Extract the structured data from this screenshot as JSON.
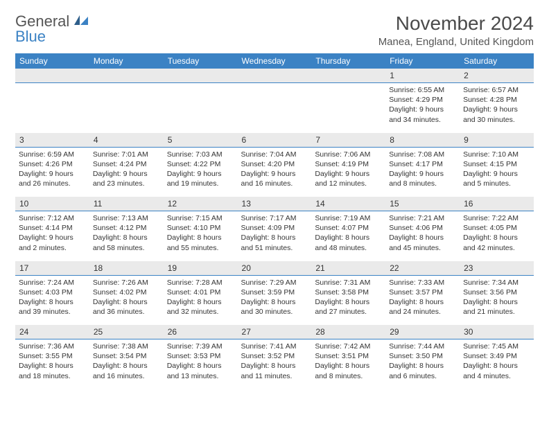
{
  "logo": {
    "text1": "General",
    "text2": "Blue"
  },
  "title": "November 2024",
  "location": "Manea, England, United Kingdom",
  "colors": {
    "header_bg": "#3b82c4",
    "header_text": "#ffffff",
    "num_row_bg": "#eaeaea",
    "divider": "#3b82c4",
    "body_bg": "#ffffff",
    "text": "#333333",
    "logo_accent": "#3b82c4"
  },
  "typography": {
    "title_fontsize": 28,
    "location_fontsize": 15,
    "dow_fontsize": 12,
    "daynum_fontsize": 12,
    "info_fontsize": 10.5
  },
  "days_of_week": [
    "Sunday",
    "Monday",
    "Tuesday",
    "Wednesday",
    "Thursday",
    "Friday",
    "Saturday"
  ],
  "weeks": [
    [
      null,
      null,
      null,
      null,
      null,
      {
        "n": "1",
        "sr": "Sunrise: 6:55 AM",
        "ss": "Sunset: 4:29 PM",
        "d1": "Daylight: 9 hours",
        "d2": "and 34 minutes."
      },
      {
        "n": "2",
        "sr": "Sunrise: 6:57 AM",
        "ss": "Sunset: 4:28 PM",
        "d1": "Daylight: 9 hours",
        "d2": "and 30 minutes."
      }
    ],
    [
      {
        "n": "3",
        "sr": "Sunrise: 6:59 AM",
        "ss": "Sunset: 4:26 PM",
        "d1": "Daylight: 9 hours",
        "d2": "and 26 minutes."
      },
      {
        "n": "4",
        "sr": "Sunrise: 7:01 AM",
        "ss": "Sunset: 4:24 PM",
        "d1": "Daylight: 9 hours",
        "d2": "and 23 minutes."
      },
      {
        "n": "5",
        "sr": "Sunrise: 7:03 AM",
        "ss": "Sunset: 4:22 PM",
        "d1": "Daylight: 9 hours",
        "d2": "and 19 minutes."
      },
      {
        "n": "6",
        "sr": "Sunrise: 7:04 AM",
        "ss": "Sunset: 4:20 PM",
        "d1": "Daylight: 9 hours",
        "d2": "and 16 minutes."
      },
      {
        "n": "7",
        "sr": "Sunrise: 7:06 AM",
        "ss": "Sunset: 4:19 PM",
        "d1": "Daylight: 9 hours",
        "d2": "and 12 minutes."
      },
      {
        "n": "8",
        "sr": "Sunrise: 7:08 AM",
        "ss": "Sunset: 4:17 PM",
        "d1": "Daylight: 9 hours",
        "d2": "and 8 minutes."
      },
      {
        "n": "9",
        "sr": "Sunrise: 7:10 AM",
        "ss": "Sunset: 4:15 PM",
        "d1": "Daylight: 9 hours",
        "d2": "and 5 minutes."
      }
    ],
    [
      {
        "n": "10",
        "sr": "Sunrise: 7:12 AM",
        "ss": "Sunset: 4:14 PM",
        "d1": "Daylight: 9 hours",
        "d2": "and 2 minutes."
      },
      {
        "n": "11",
        "sr": "Sunrise: 7:13 AM",
        "ss": "Sunset: 4:12 PM",
        "d1": "Daylight: 8 hours",
        "d2": "and 58 minutes."
      },
      {
        "n": "12",
        "sr": "Sunrise: 7:15 AM",
        "ss": "Sunset: 4:10 PM",
        "d1": "Daylight: 8 hours",
        "d2": "and 55 minutes."
      },
      {
        "n": "13",
        "sr": "Sunrise: 7:17 AM",
        "ss": "Sunset: 4:09 PM",
        "d1": "Daylight: 8 hours",
        "d2": "and 51 minutes."
      },
      {
        "n": "14",
        "sr": "Sunrise: 7:19 AM",
        "ss": "Sunset: 4:07 PM",
        "d1": "Daylight: 8 hours",
        "d2": "and 48 minutes."
      },
      {
        "n": "15",
        "sr": "Sunrise: 7:21 AM",
        "ss": "Sunset: 4:06 PM",
        "d1": "Daylight: 8 hours",
        "d2": "and 45 minutes."
      },
      {
        "n": "16",
        "sr": "Sunrise: 7:22 AM",
        "ss": "Sunset: 4:05 PM",
        "d1": "Daylight: 8 hours",
        "d2": "and 42 minutes."
      }
    ],
    [
      {
        "n": "17",
        "sr": "Sunrise: 7:24 AM",
        "ss": "Sunset: 4:03 PM",
        "d1": "Daylight: 8 hours",
        "d2": "and 39 minutes."
      },
      {
        "n": "18",
        "sr": "Sunrise: 7:26 AM",
        "ss": "Sunset: 4:02 PM",
        "d1": "Daylight: 8 hours",
        "d2": "and 36 minutes."
      },
      {
        "n": "19",
        "sr": "Sunrise: 7:28 AM",
        "ss": "Sunset: 4:01 PM",
        "d1": "Daylight: 8 hours",
        "d2": "and 32 minutes."
      },
      {
        "n": "20",
        "sr": "Sunrise: 7:29 AM",
        "ss": "Sunset: 3:59 PM",
        "d1": "Daylight: 8 hours",
        "d2": "and 30 minutes."
      },
      {
        "n": "21",
        "sr": "Sunrise: 7:31 AM",
        "ss": "Sunset: 3:58 PM",
        "d1": "Daylight: 8 hours",
        "d2": "and 27 minutes."
      },
      {
        "n": "22",
        "sr": "Sunrise: 7:33 AM",
        "ss": "Sunset: 3:57 PM",
        "d1": "Daylight: 8 hours",
        "d2": "and 24 minutes."
      },
      {
        "n": "23",
        "sr": "Sunrise: 7:34 AM",
        "ss": "Sunset: 3:56 PM",
        "d1": "Daylight: 8 hours",
        "d2": "and 21 minutes."
      }
    ],
    [
      {
        "n": "24",
        "sr": "Sunrise: 7:36 AM",
        "ss": "Sunset: 3:55 PM",
        "d1": "Daylight: 8 hours",
        "d2": "and 18 minutes."
      },
      {
        "n": "25",
        "sr": "Sunrise: 7:38 AM",
        "ss": "Sunset: 3:54 PM",
        "d1": "Daylight: 8 hours",
        "d2": "and 16 minutes."
      },
      {
        "n": "26",
        "sr": "Sunrise: 7:39 AM",
        "ss": "Sunset: 3:53 PM",
        "d1": "Daylight: 8 hours",
        "d2": "and 13 minutes."
      },
      {
        "n": "27",
        "sr": "Sunrise: 7:41 AM",
        "ss": "Sunset: 3:52 PM",
        "d1": "Daylight: 8 hours",
        "d2": "and 11 minutes."
      },
      {
        "n": "28",
        "sr": "Sunrise: 7:42 AM",
        "ss": "Sunset: 3:51 PM",
        "d1": "Daylight: 8 hours",
        "d2": "and 8 minutes."
      },
      {
        "n": "29",
        "sr": "Sunrise: 7:44 AM",
        "ss": "Sunset: 3:50 PM",
        "d1": "Daylight: 8 hours",
        "d2": "and 6 minutes."
      },
      {
        "n": "30",
        "sr": "Sunrise: 7:45 AM",
        "ss": "Sunset: 3:49 PM",
        "d1": "Daylight: 8 hours",
        "d2": "and 4 minutes."
      }
    ]
  ]
}
